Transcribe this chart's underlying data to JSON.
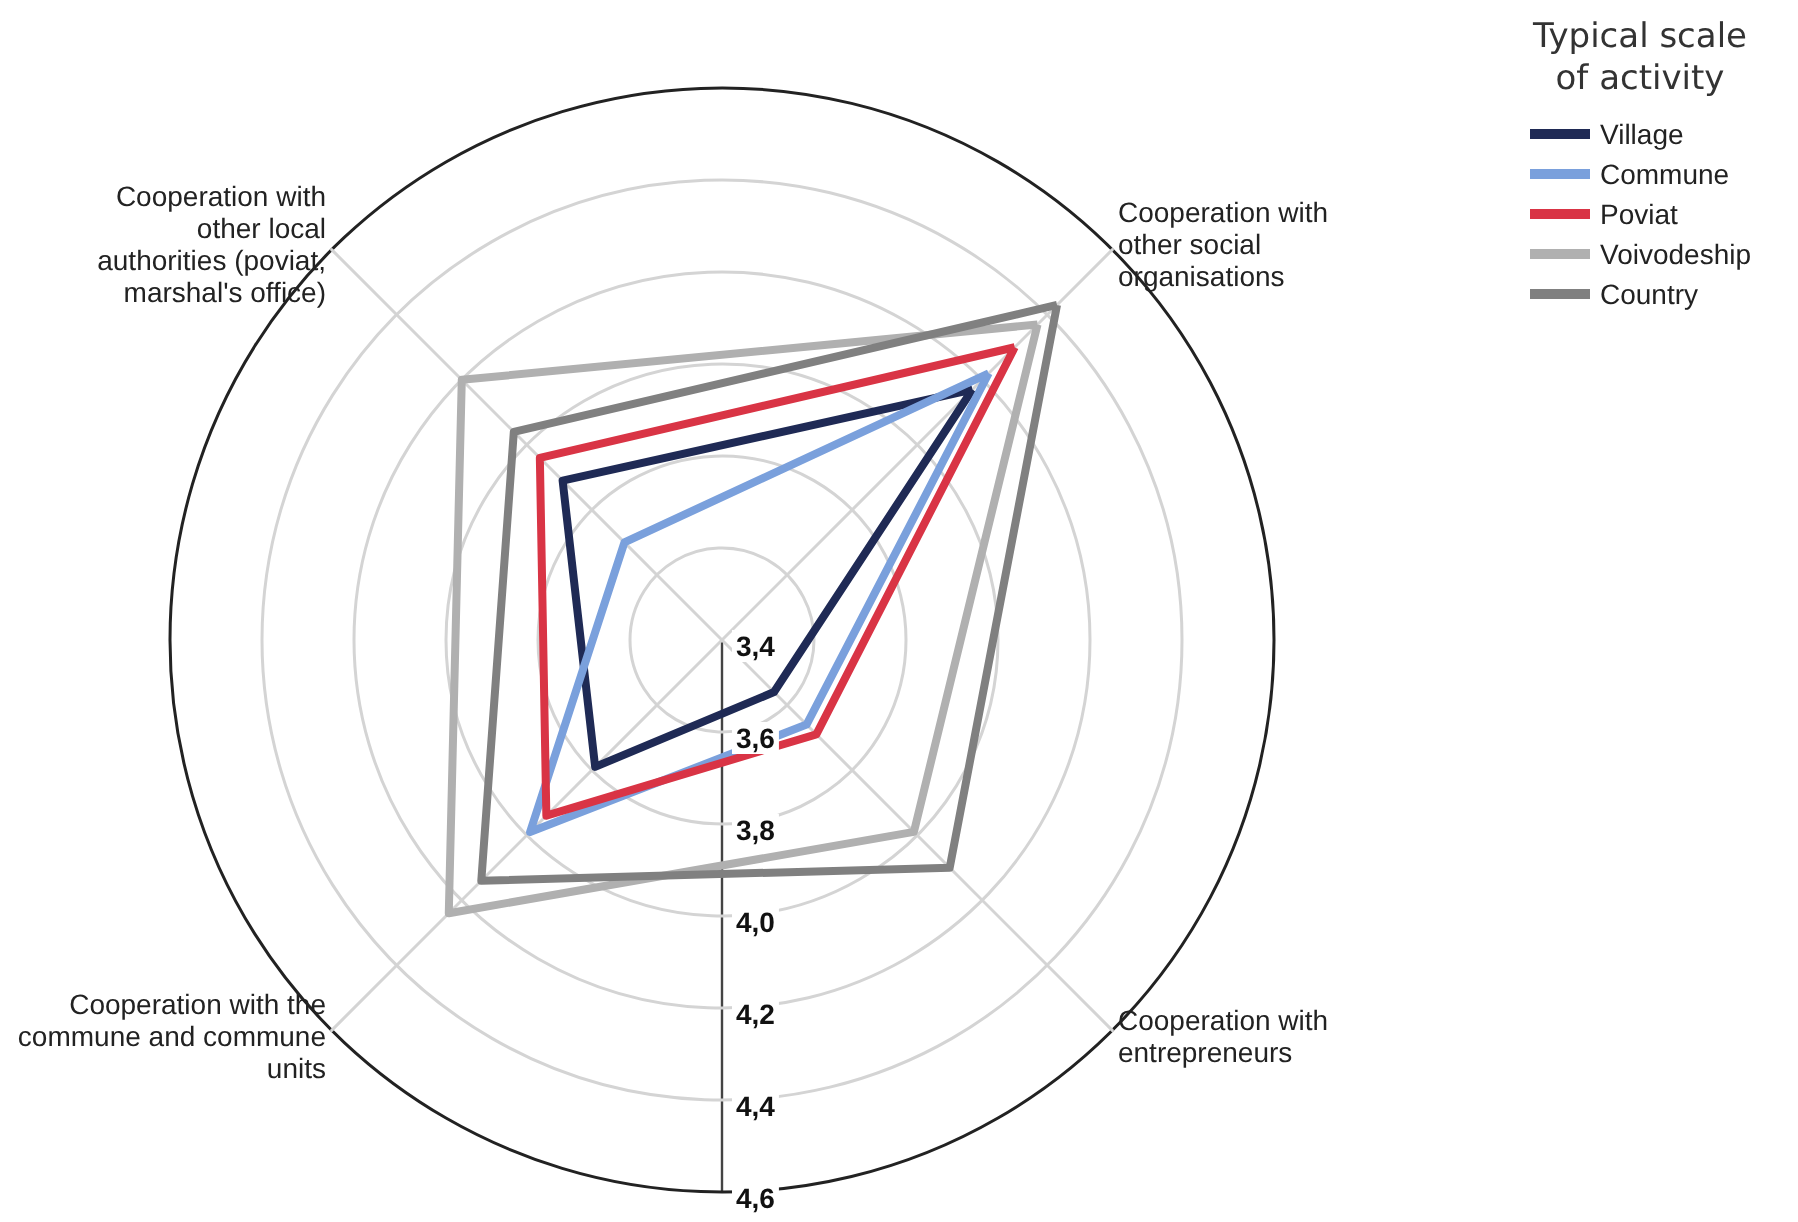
{
  "chart_data": {
    "type": "radar",
    "legend_title": "Typical scale of activity",
    "legend": "top right",
    "marker": "none",
    "line_style": "solid",
    "categories": [
      "Cooperation with other social organisations",
      "Cooperation with entrepreneurs",
      "Cooperation with the commune and commune units",
      "Cooperation with other local authorities (poviat, marshal's office)"
    ],
    "ylim": [
      3.4,
      4.6
    ],
    "yticks": [
      {
        "value": 3.4,
        "label": "3,4"
      },
      {
        "value": 3.6,
        "label": "3,6"
      },
      {
        "value": 3.8,
        "label": "3,8"
      },
      {
        "value": 4.0,
        "label": "4,0"
      },
      {
        "value": 4.2,
        "label": "4,2"
      },
      {
        "value": 4.4,
        "label": "4,4"
      },
      {
        "value": 4.6,
        "label": "4,6"
      }
    ],
    "series": [
      {
        "name": "Village",
        "color": "#1f2a55",
        "values": [
          4.17,
          3.56,
          3.79,
          3.89
        ]
      },
      {
        "name": "Commune",
        "color": "#7aa0dc",
        "values": [
          4.22,
          3.66,
          3.99,
          3.7
        ]
      },
      {
        "name": "Poviat",
        "color": "#d93445",
        "values": [
          4.3,
          3.69,
          3.94,
          3.96
        ]
      },
      {
        "name": "Voivodeship",
        "color": "#b0b0b0",
        "values": [
          4.37,
          3.99,
          4.24,
          4.2
        ]
      },
      {
        "name": "Country",
        "color": "#808080",
        "values": [
          4.43,
          4.1,
          4.14,
          4.04
        ]
      }
    ]
  }
}
